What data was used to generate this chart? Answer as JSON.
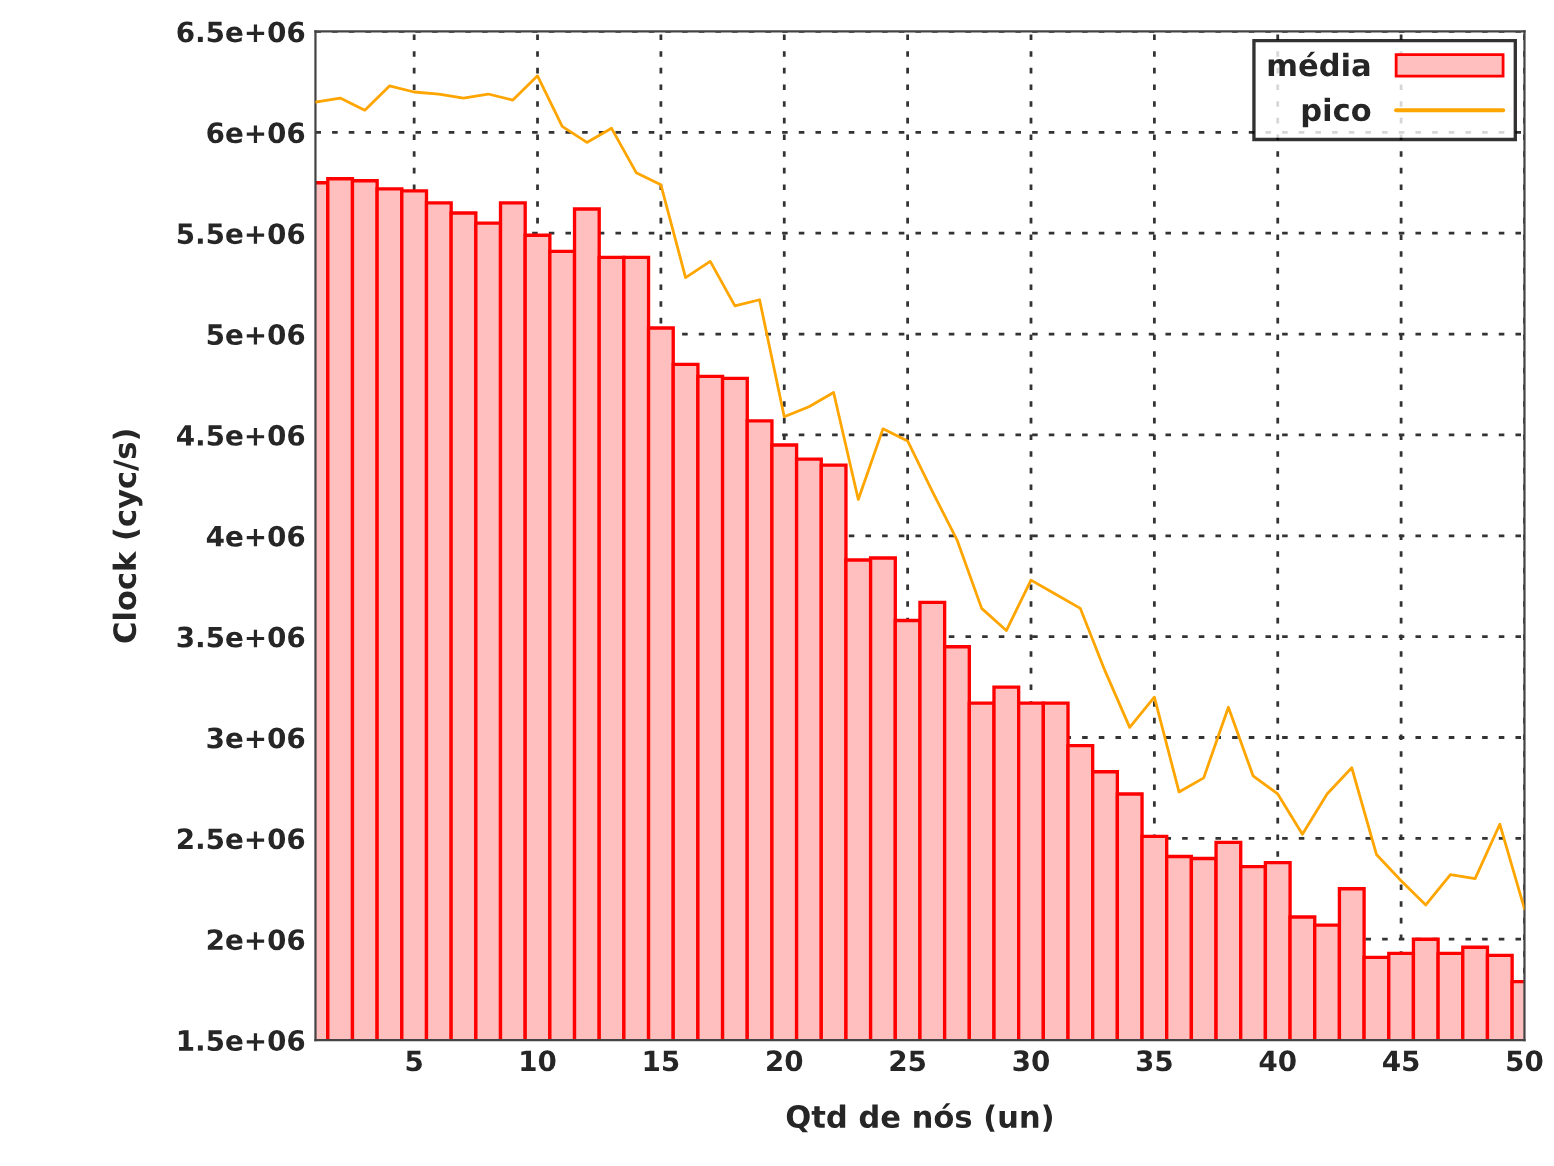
{
  "chart_data": {
    "type": "bar",
    "xlabel": "Qtd de nós (un)",
    "ylabel": "Clock (cyc/s)",
    "x": [
      1,
      2,
      3,
      4,
      5,
      6,
      7,
      8,
      9,
      10,
      11,
      12,
      13,
      14,
      15,
      16,
      17,
      18,
      19,
      20,
      21,
      22,
      23,
      24,
      25,
      26,
      27,
      28,
      29,
      30,
      31,
      32,
      33,
      34,
      35,
      36,
      37,
      38,
      39,
      40,
      41,
      42,
      43,
      44,
      45,
      46,
      47,
      48,
      49,
      50
    ],
    "series": [
      {
        "name": "média",
        "color": "#ffbfbf",
        "values": [
          5750000,
          5770000,
          5760000,
          5720000,
          5710000,
          5650000,
          5600000,
          5550000,
          5650000,
          5490000,
          5410000,
          5620000,
          5380000,
          5380000,
          5030000,
          4850000,
          4790000,
          4780000,
          4570000,
          4450000,
          4380000,
          4350000,
          3880000,
          3890000,
          3580000,
          3670000,
          3450000,
          3170000,
          3250000,
          3170000,
          3170000,
          2960000,
          2830000,
          2720000,
          2510000,
          2410000,
          2400000,
          2480000,
          2360000,
          2380000,
          2110000,
          2070000,
          2250000,
          1910000,
          1930000,
          2000000,
          1930000,
          1960000,
          1920000,
          1790000
        ]
      },
      {
        "name": "pico",
        "type": "line",
        "color": "#ffa500",
        "values": [
          6150000,
          6170000,
          6110000,
          6230000,
          6200000,
          6190000,
          6170000,
          6190000,
          6160000,
          6280000,
          6030000,
          5950000,
          6020000,
          5800000,
          5740000,
          5280000,
          5360000,
          5140000,
          5170000,
          4590000,
          4640000,
          4710000,
          4180000,
          4530000,
          4470000,
          4220000,
          3980000,
          3640000,
          3530000,
          3780000,
          3710000,
          3640000,
          3330000,
          3050000,
          3200000,
          2730000,
          2800000,
          3150000,
          2810000,
          2720000,
          2520000,
          2720000,
          2850000,
          2420000,
          2290000,
          2170000,
          2320000,
          2300000,
          2570000,
          2150000
        ]
      }
    ],
    "xlim": [
      1,
      50
    ],
    "xticks": [
      5,
      10,
      15,
      20,
      25,
      30,
      35,
      40,
      45,
      50
    ],
    "ylim": [
      1500000,
      6500000
    ],
    "yticks": [
      {
        "value": 1500000,
        "label": "1.5e+06"
      },
      {
        "value": 2000000,
        "label": "2e+06"
      },
      {
        "value": 2500000,
        "label": "2.5e+06"
      },
      {
        "value": 3000000,
        "label": "3e+06"
      },
      {
        "value": 3500000,
        "label": "3.5e+06"
      },
      {
        "value": 4000000,
        "label": "4e+06"
      },
      {
        "value": 4500000,
        "label": "4.5e+06"
      },
      {
        "value": 5000000,
        "label": "5e+06"
      },
      {
        "value": 5500000,
        "label": "5.5e+06"
      },
      {
        "value": 6000000,
        "label": "6e+06"
      },
      {
        "value": 6500000,
        "label": "6.5e+06"
      }
    ],
    "grid": true,
    "legend": "top right"
  }
}
